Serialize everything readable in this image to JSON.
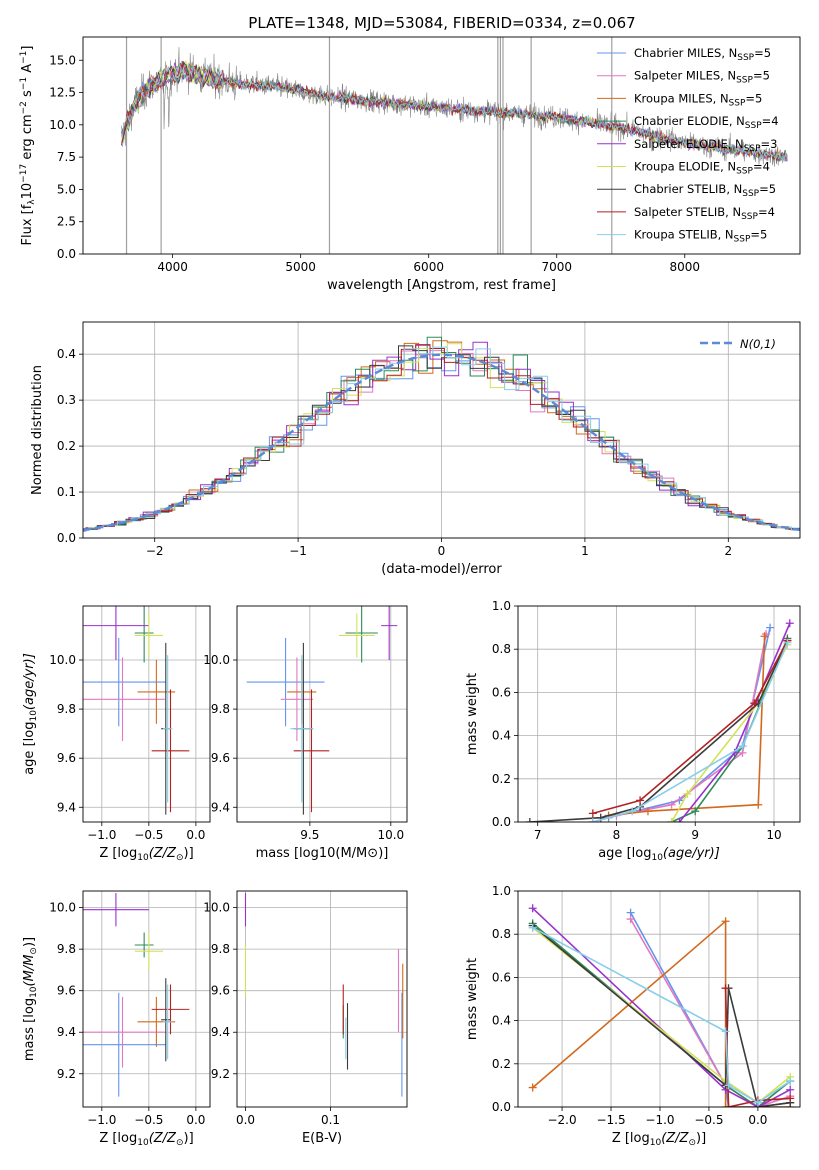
{
  "figure": {
    "title": "PLATE=1348, MJD=53084, FIBERID=0334, z=0.067",
    "legend_entries": [
      "Chabrier MILES, N$_{SSP}$=5",
      "Salpeter MILES, N$_{SSP}$=5",
      "Kroupa MILES, N$_{SSP}$=5",
      "Chabrier ELODIE, N$_{SSP}$=4",
      "Salpeter ELODIE, N$_{SSP}$=3",
      "Kroupa ELODIE, N$_{SSP}$=4",
      "Chabrier STELIB, N$_{SSP}$=5",
      "Salpeter STELIB, N$_{SSP}$=4",
      "Kroupa STELIB, N$_{SSP}$=5"
    ],
    "legend_text": [
      [
        "Chabrier MILES, N",
        "SSP",
        "=5"
      ],
      [
        "Salpeter MILES, N",
        "SSP",
        "=5"
      ],
      [
        "Kroupa MILES, N",
        "SSP",
        "=5"
      ],
      [
        "Chabrier ELODIE, N",
        "SSP",
        "=4"
      ],
      [
        "Salpeter ELODIE, N",
        "SSP",
        "=3"
      ],
      [
        "Kroupa ELODIE, N",
        "SSP",
        "=4"
      ],
      [
        "Chabrier STELIB, N",
        "SSP",
        "=5"
      ],
      [
        "Salpeter STELIB, N",
        "SSP",
        "=4"
      ],
      [
        "Kroupa STELIB, N",
        "SSP",
        "=5"
      ]
    ],
    "model_colors": [
      "#6495ed",
      "#e377c2",
      "#d2691e",
      "#2e8b57",
      "#9932cc",
      "#d4e157",
      "#3b3b3b",
      "#b22222",
      "#87ceeb"
    ]
  },
  "chart_data": [
    {
      "type": "line",
      "xlabel": "wavelength [Angstrom, rest frame]",
      "ylabel_parts": [
        "Flux [f",
        "λ",
        "10",
        "−17",
        " erg cm",
        "−2",
        " s",
        "−1",
        " A",
        "−1",
        "]"
      ],
      "xlim": [
        3300,
        8900
      ],
      "ylim": [
        0,
        16.8
      ],
      "xticks": [
        4000,
        5000,
        6000,
        7000,
        8000
      ],
      "yticks": [
        0.0,
        2.5,
        5.0,
        7.5,
        10.0,
        12.5,
        15.0
      ],
      "continuum": [
        [
          3600,
          9.0
        ],
        [
          3700,
          11.5
        ],
        [
          3800,
          12.8
        ],
        [
          3950,
          13.8
        ],
        [
          4100,
          14.2
        ],
        [
          4300,
          13.6
        ],
        [
          4500,
          13.2
        ],
        [
          4800,
          13.0
        ],
        [
          5200,
          12.2
        ],
        [
          5600,
          11.8
        ],
        [
          6000,
          11.4
        ],
        [
          6500,
          11.0
        ],
        [
          7000,
          10.6
        ],
        [
          7500,
          9.8
        ],
        [
          8000,
          8.6
        ],
        [
          8500,
          7.9
        ],
        [
          8800,
          7.5
        ]
      ],
      "masked_spikes": [
        3640,
        3910,
        5225,
        6540,
        6560,
        6580,
        6800,
        7430
      ]
    },
    {
      "type": "line",
      "xlabel": "(data-model)/error",
      "ylabel": "Normed distribution",
      "xlim": [
        -2.5,
        2.5
      ],
      "ylim": [
        0,
        0.47
      ],
      "xticks": [
        -2,
        -1,
        0,
        1,
        2
      ],
      "yticks": [
        0.0,
        0.1,
        0.2,
        0.3,
        0.4
      ],
      "series": [
        {
          "name": "N(0,1)",
          "style": "dashed",
          "mean": 0,
          "sigma": 1
        }
      ],
      "hist_bin_width": 0.1
    },
    {
      "type": "scatter",
      "xlabel_parts": [
        "Z [log",
        "10",
        "(Z/Z",
        "⊙",
        ")]"
      ],
      "ylabel_parts": [
        "age  [log",
        "10",
        "(age/yr)]"
      ],
      "xlim": [
        -1.2,
        0.15
      ],
      "ylim": [
        9.34,
        10.22
      ],
      "xticks": [
        -1.0,
        -0.5,
        0.0
      ],
      "yticks": [
        9.4,
        9.6,
        9.8,
        10.0
      ],
      "points": [
        {
          "x": -0.82,
          "y": 9.91,
          "xerr": 0.5,
          "yerr": 0.18
        },
        {
          "x": -0.78,
          "y": 9.84,
          "xerr": 0.45,
          "yerr": 0.17
        },
        {
          "x": -0.42,
          "y": 9.87,
          "xerr": 0.2,
          "yerr": 0.13
        },
        {
          "x": -0.55,
          "y": 10.11,
          "xerr": 0.1,
          "yerr": 0.12
        },
        {
          "x": -0.85,
          "y": 10.14,
          "xerr": 0.35,
          "yerr": 0.14
        },
        {
          "x": -0.5,
          "y": 10.1,
          "xerr": 0.15,
          "yerr": 0.09
        },
        {
          "x": -0.32,
          "y": 9.72,
          "xerr": 0.05,
          "yerr": 0.35
        },
        {
          "x": -0.27,
          "y": 9.63,
          "xerr": 0.2,
          "yerr": 0.25
        },
        {
          "x": -0.3,
          "y": 9.72,
          "xerr": 0.05,
          "yerr": 0.3
        }
      ]
    },
    {
      "type": "scatter",
      "xlabel_parts": [
        "mass [log",
        "10",
        "(M/M",
        "⊙",
        ")]"
      ],
      "xlim": [
        9.05,
        10.1
      ],
      "ylim": [
        9.34,
        10.22
      ],
      "xticks": [
        9.5,
        10.0
      ],
      "yticks": [
        9.4,
        9.6,
        9.8,
        10.0
      ],
      "points": [
        {
          "x": 9.35,
          "y": 9.91,
          "xerr": 0.24,
          "yerr": 0.18
        },
        {
          "x": 9.42,
          "y": 9.84,
          "xerr": 0.1,
          "yerr": 0.17
        },
        {
          "x": 9.45,
          "y": 9.87,
          "xerr": 0.09,
          "yerr": 0.13
        },
        {
          "x": 9.82,
          "y": 10.11,
          "xerr": 0.1,
          "yerr": 0.12
        },
        {
          "x": 9.99,
          "y": 10.14,
          "xerr": 0.05,
          "yerr": 0.14
        },
        {
          "x": 9.79,
          "y": 10.1,
          "xerr": 0.11,
          "yerr": 0.09
        },
        {
          "x": 9.46,
          "y": 9.72,
          "xerr": 0.06,
          "yerr": 0.35
        },
        {
          "x": 9.51,
          "y": 9.63,
          "xerr": 0.11,
          "yerr": 0.25
        },
        {
          "x": 9.45,
          "y": 9.72,
          "xerr": 0.07,
          "yerr": 0.3
        }
      ]
    },
    {
      "type": "line",
      "xlabel_parts": [
        "age  [log",
        "10",
        "(age/yr)]"
      ],
      "ylabel": "mass weight",
      "xlim": [
        6.75,
        10.33
      ],
      "ylim": [
        0,
        1.0
      ],
      "xticks": [
        7,
        8,
        9,
        10
      ],
      "yticks": [
        0.0,
        0.2,
        0.4,
        0.6,
        0.8,
        1.0
      ],
      "series": [
        {
          "x": [
            7.7,
            7.9,
            8.8,
            9.6,
            9.95
          ],
          "y": [
            0.0,
            0.02,
            0.1,
            0.35,
            0.9
          ]
        },
        {
          "x": [
            7.7,
            8.0,
            8.7,
            9.6,
            9.9
          ],
          "y": [
            0.0,
            0.03,
            0.08,
            0.32,
            0.87
          ]
        },
        {
          "x": [
            7.9,
            8.4,
            9.8,
            9.88
          ],
          "y": [
            0.03,
            0.05,
            0.08,
            0.86
          ]
        },
        {
          "x": [
            8.7,
            9.0,
            9.6,
            10.17
          ],
          "y": [
            0.0,
            0.05,
            0.35,
            0.85
          ]
        },
        {
          "x": [
            8.8,
            9.5,
            10.2
          ],
          "y": [
            0.0,
            0.32,
            0.92
          ]
        },
        {
          "x": [
            8.7,
            8.9,
            9.8,
            10.17
          ],
          "y": [
            0.0,
            0.13,
            0.55,
            0.82
          ]
        },
        {
          "x": [
            6.9,
            7.8,
            8.3,
            9.8,
            10.17
          ],
          "y": [
            0.0,
            0.02,
            0.07,
            0.55,
            0.84
          ]
        },
        {
          "x": [
            7.7,
            8.3,
            9.75,
            10.17
          ],
          "y": [
            0.04,
            0.1,
            0.55,
            0.84
          ]
        },
        {
          "x": [
            7.7,
            8.2,
            9.6,
            10.17
          ],
          "y": [
            0.0,
            0.05,
            0.35,
            0.83
          ]
        }
      ]
    },
    {
      "type": "scatter",
      "xlabel_parts": [
        "Z [log",
        "10",
        "(Z/Z",
        "⊙",
        ")]"
      ],
      "ylabel_parts": [
        "mass [log",
        "10",
        "(M/M",
        "⊙",
        ")]"
      ],
      "xlim": [
        -1.2,
        0.15
      ],
      "ylim": [
        9.04,
        10.08
      ],
      "xticks": [
        -1.0,
        -0.5,
        0.0
      ],
      "yticks": [
        9.2,
        9.4,
        9.6,
        9.8,
        10.0
      ],
      "points": [
        {
          "x": -0.82,
          "y": 9.34,
          "xerr": 0.5,
          "yerr": 0.25
        },
        {
          "x": -0.78,
          "y": 9.4,
          "xerr": 0.45,
          "yerr": 0.17
        },
        {
          "x": -0.42,
          "y": 9.45,
          "xerr": 0.2,
          "yerr": 0.12
        },
        {
          "x": -0.55,
          "y": 9.82,
          "xerr": 0.1,
          "yerr": 0.06
        },
        {
          "x": -0.85,
          "y": 9.99,
          "xerr": 0.35,
          "yerr": 0.08
        },
        {
          "x": -0.5,
          "y": 9.79,
          "xerr": 0.15,
          "yerr": 0.09
        },
        {
          "x": -0.32,
          "y": 9.46,
          "xerr": 0.05,
          "yerr": 0.2
        },
        {
          "x": -0.27,
          "y": 9.51,
          "xerr": 0.2,
          "yerr": 0.12
        },
        {
          "x": -0.3,
          "y": 9.45,
          "xerr": 0.05,
          "yerr": 0.18
        }
      ]
    },
    {
      "type": "scatter",
      "xlabel": "E(B-V)",
      "xlim": [
        -0.01,
        0.19
      ],
      "ylim": [
        9.04,
        10.08
      ],
      "xticks": [
        0.0,
        0.1
      ],
      "yticks": [
        9.2,
        9.4,
        9.6,
        9.8,
        10.0
      ],
      "points": [
        {
          "x": 0.184,
          "y": 9.34,
          "xerr": 0,
          "yerr": 0.25
        },
        {
          "x": 0.18,
          "y": 9.6,
          "xerr": 0,
          "yerr": 0.2
        },
        {
          "x": 0.185,
          "y": 9.55,
          "xerr": 0,
          "yerr": 0.18
        },
        {
          "x": 0.115,
          "y": 9.45,
          "xerr": 0,
          "yerr": 0.08
        },
        {
          "x": 0.0,
          "y": 9.99,
          "xerr": 0,
          "yerr": 0.08
        },
        {
          "x": 0.0,
          "y": 9.7,
          "xerr": 0,
          "yerr": 0.12
        },
        {
          "x": 0.12,
          "y": 9.38,
          "xerr": 0,
          "yerr": 0.16
        },
        {
          "x": 0.115,
          "y": 9.51,
          "xerr": 0,
          "yerr": 0.12
        },
        {
          "x": 0.118,
          "y": 9.37,
          "xerr": 0,
          "yerr": 0.1
        }
      ]
    },
    {
      "type": "line",
      "xlabel_parts": [
        "Z [log",
        "10",
        "(Z/Z",
        "⊙",
        ")]"
      ],
      "ylabel": "mass weight",
      "xlim": [
        -2.45,
        0.43
      ],
      "ylim": [
        0,
        1.0
      ],
      "xticks": [
        -2.0,
        -1.5,
        -1.0,
        -0.5,
        0.0
      ],
      "yticks": [
        0.0,
        0.2,
        0.4,
        0.6,
        0.8,
        1.0
      ],
      "series": [
        {
          "x": [
            -1.3,
            -0.33,
            -0.3,
            0.0,
            0.33
          ],
          "y": [
            0.9,
            0.1,
            0.0,
            0.0,
            0.02
          ]
        },
        {
          "x": [
            -1.3,
            -0.33,
            0.0,
            0.33
          ],
          "y": [
            0.87,
            0.1,
            0.0,
            0.05
          ]
        },
        {
          "x": [
            -2.3,
            -0.33,
            -0.33,
            0.0,
            0.33
          ],
          "y": [
            0.09,
            0.86,
            0.0,
            0.0,
            0.0
          ]
        },
        {
          "x": [
            -2.3,
            -0.33,
            0.0,
            0.33
          ],
          "y": [
            0.85,
            0.1,
            0.0,
            0.12
          ]
        },
        {
          "x": [
            -2.3,
            -0.33,
            0.0,
            0.33
          ],
          "y": [
            0.92,
            0.08,
            0.0,
            0.08
          ]
        },
        {
          "x": [
            -2.3,
            -0.33,
            0.0,
            0.33
          ],
          "y": [
            0.83,
            0.12,
            0.02,
            0.14
          ]
        },
        {
          "x": [
            -2.3,
            -0.33,
            -0.3,
            0.0,
            0.33
          ],
          "y": [
            0.84,
            0.1,
            0.55,
            0.0,
            0.02
          ]
        },
        {
          "x": [
            -0.33,
            -0.3,
            0.0,
            0.33
          ],
          "y": [
            0.55,
            0.0,
            0.03,
            0.04
          ]
        },
        {
          "x": [
            -2.3,
            -0.33,
            -0.3,
            0.0,
            0.33
          ],
          "y": [
            0.83,
            0.35,
            0.1,
            0.02,
            0.12
          ]
        }
      ]
    }
  ]
}
